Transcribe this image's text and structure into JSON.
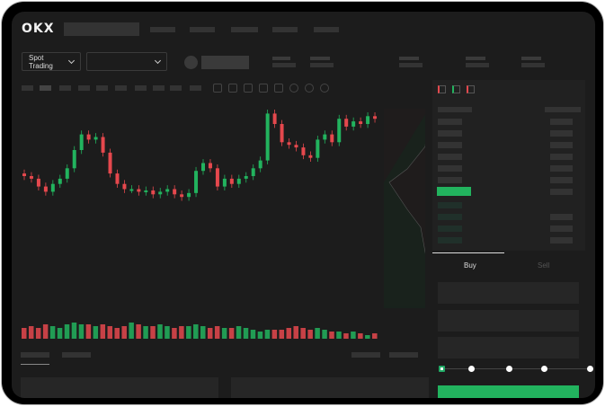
{
  "brand": "OKX",
  "header": {
    "mode_select": "Spot Trading"
  },
  "trade": {
    "tabs": [
      "Buy",
      "Sell"
    ],
    "active_tab": "Buy",
    "leverage_steps": 5,
    "selected_step": 0
  },
  "colors": {
    "up": "#22b35e",
    "down": "#e5484d",
    "bg": "#1c1c1c"
  },
  "chart_data": {
    "type": "candlestick",
    "closes": [
      60,
      58,
      52,
      48,
      54,
      58,
      66,
      80,
      92,
      88,
      90,
      78,
      62,
      54,
      50,
      50,
      48,
      49,
      46,
      48,
      50,
      46,
      44,
      47,
      64,
      70,
      66,
      52,
      58,
      54,
      58,
      60,
      66,
      72,
      108,
      100,
      86,
      84,
      82,
      76,
      74,
      88,
      92,
      86,
      104,
      98,
      102,
      100,
      106,
      104
    ],
    "volumes": [
      6,
      7,
      6,
      8,
      7,
      6,
      8,
      9,
      8,
      8,
      7,
      8,
      7,
      6,
      7,
      9,
      8,
      7,
      7,
      8,
      7,
      6,
      7,
      7,
      8,
      7,
      6,
      7,
      6,
      6,
      7,
      6,
      5,
      4,
      5,
      5,
      5,
      6,
      7,
      6,
      5,
      6,
      5,
      4,
      4,
      3,
      4,
      3,
      2,
      3
    ]
  }
}
